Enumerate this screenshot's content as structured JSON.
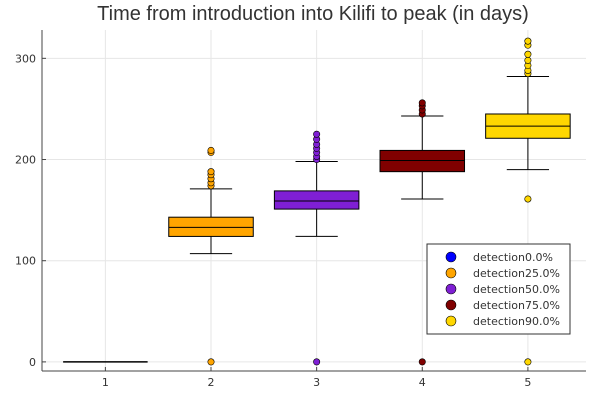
{
  "chart_data": {
    "type": "box",
    "title": "Time from introduction into Kilifi to peak (in days)",
    "xlabel": "",
    "ylabel": "",
    "x_ticks": [
      "1",
      "2",
      "3",
      "4",
      "5"
    ],
    "y_ticks": [
      0,
      100,
      200,
      300
    ],
    "xlim": [
      0.4,
      5.55
    ],
    "ylim": [
      -9,
      328
    ],
    "grid": true,
    "legend_position": "bottom-right",
    "series": [
      {
        "name": "detection0.0%",
        "color": "#0000ff",
        "x": 1,
        "whisker_low": 0,
        "q1": 0,
        "median": 0,
        "q3": 0,
        "whisker_high": 0,
        "outliers": []
      },
      {
        "name": "detection25.0%",
        "color": "#ffa500",
        "x": 2,
        "whisker_low": 107,
        "q1": 124,
        "median": 133,
        "q3": 143,
        "whisker_high": 171,
        "outliers": [
          0,
          174,
          177,
          181,
          185,
          188,
          207,
          209
        ]
      },
      {
        "name": "detection50.0%",
        "color": "#7f1fd4",
        "x": 3,
        "whisker_low": 124,
        "q1": 151,
        "median": 159,
        "q3": 169,
        "whisker_high": 198,
        "outliers": [
          0,
          200,
          203,
          207,
          211,
          215,
          220,
          225
        ]
      },
      {
        "name": "detection75.0%",
        "color": "#800000",
        "x": 4,
        "whisker_low": 161,
        "q1": 188,
        "median": 199,
        "q3": 209,
        "whisker_high": 243,
        "outliers": [
          0,
          245,
          249,
          253,
          256
        ]
      },
      {
        "name": "detection90.0%",
        "color": "#ffd700",
        "x": 5,
        "whisker_low": 190,
        "q1": 221,
        "median": 233,
        "q3": 245,
        "whisker_high": 282,
        "outliers": [
          0,
          161,
          285,
          288,
          293,
          298,
          304,
          313,
          317
        ]
      }
    ]
  }
}
